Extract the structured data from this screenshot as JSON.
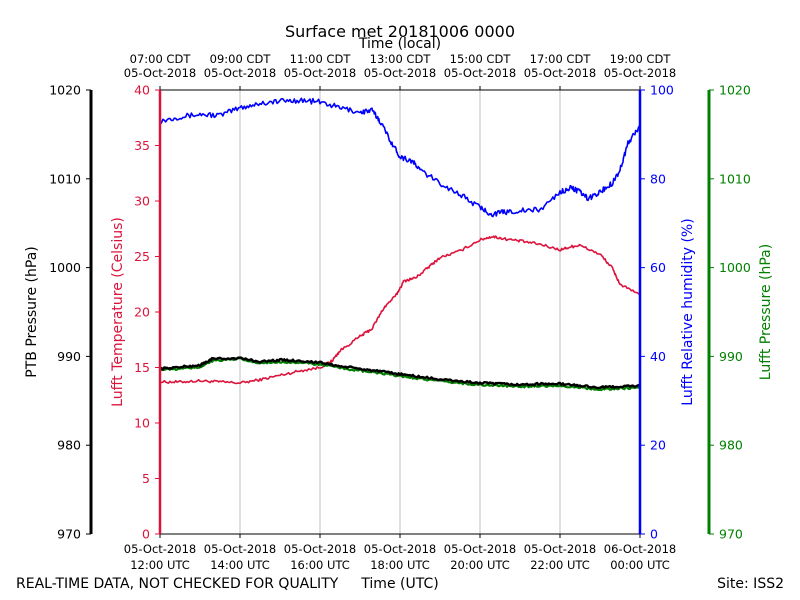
{
  "chart_data": {
    "type": "line",
    "title": "Surface met 20181006 0000",
    "top_axis_label": "Time (local)",
    "xlabel": "Time (UTC)",
    "footer_left": "REAL-TIME DATA, NOT CHECKED FOR QUALITY",
    "footer_right": "Site: ISS2",
    "x_range_hours": [
      12,
      24
    ],
    "x_ticks": [
      {
        "t": 12,
        "utc": [
          "05-Oct-2018",
          "12:00 UTC"
        ],
        "local": [
          "07:00 CDT",
          "05-Oct-2018"
        ]
      },
      {
        "t": 14,
        "utc": [
          "05-Oct-2018",
          "14:00 UTC"
        ],
        "local": [
          "09:00 CDT",
          "05-Oct-2018"
        ]
      },
      {
        "t": 16,
        "utc": [
          "05-Oct-2018",
          "16:00 UTC"
        ],
        "local": [
          "11:00 CDT",
          "05-Oct-2018"
        ]
      },
      {
        "t": 18,
        "utc": [
          "05-Oct-2018",
          "18:00 UTC"
        ],
        "local": [
          "13:00 CDT",
          "05-Oct-2018"
        ]
      },
      {
        "t": 20,
        "utc": [
          "05-Oct-2018",
          "20:00 UTC"
        ],
        "local": [
          "15:00 CDT",
          "05-Oct-2018"
        ]
      },
      {
        "t": 22,
        "utc": [
          "05-Oct-2018",
          "22:00 UTC"
        ],
        "local": [
          "17:00 CDT",
          "05-Oct-2018"
        ]
      },
      {
        "t": 24,
        "utc": [
          "06-Oct-2018",
          "00:00 UTC"
        ],
        "local": [
          "19:00 CDT",
          "05-Oct-2018"
        ]
      }
    ],
    "axes": {
      "ptb_pressure": {
        "label": "PTB Pressure (hPa)",
        "ylim": [
          970,
          1020
        ],
        "ticks": [
          970,
          980,
          990,
          1000,
          1010,
          1020
        ],
        "color": "#000000"
      },
      "temperature": {
        "label": "Lufft Temperature (Celsius)",
        "ylim": [
          0,
          40
        ],
        "ticks": [
          0,
          5,
          10,
          15,
          20,
          25,
          30,
          35,
          40
        ],
        "color": "#dc143c"
      },
      "humidity": {
        "label": "Lufft Relative humidity (%)",
        "ylim": [
          0,
          100
        ],
        "ticks": [
          0,
          20,
          40,
          60,
          80,
          100
        ],
        "color": "#0000ff"
      },
      "lufft_pressure": {
        "label": "Lufft Pressure (hPa)",
        "ylim": [
          970,
          1020
        ],
        "ticks": [
          970,
          980,
          990,
          1000,
          1010,
          1020
        ],
        "color": "#008000"
      }
    },
    "series": [
      {
        "name": "Lufft Temperature (Celsius)",
        "axis": "temperature",
        "color": "#dc143c",
        "points": [
          [
            12,
            13.7
          ],
          [
            12.5,
            13.7
          ],
          [
            13,
            13.8
          ],
          [
            13.5,
            13.7
          ],
          [
            14,
            13.6
          ],
          [
            14.5,
            13.9
          ],
          [
            15,
            14.3
          ],
          [
            15.5,
            14.7
          ],
          [
            16,
            15.0
          ],
          [
            16.3,
            15.6
          ],
          [
            16.5,
            16.5
          ],
          [
            17,
            17.8
          ],
          [
            17.3,
            18.5
          ],
          [
            17.6,
            20.4
          ],
          [
            17.9,
            21.5
          ],
          [
            18.1,
            22.8
          ],
          [
            18.4,
            23.1
          ],
          [
            18.7,
            24.0
          ],
          [
            19,
            24.9
          ],
          [
            19.5,
            25.5
          ],
          [
            20,
            26.5
          ],
          [
            20.3,
            26.8
          ],
          [
            20.6,
            26.6
          ],
          [
            21,
            26.4
          ],
          [
            21.5,
            26.1
          ],
          [
            22,
            25.6
          ],
          [
            22.3,
            25.9
          ],
          [
            22.5,
            26.0
          ],
          [
            23,
            25.2
          ],
          [
            23.3,
            24.0
          ],
          [
            23.5,
            22.5
          ],
          [
            24,
            21.5
          ]
        ]
      },
      {
        "name": "Lufft Relative humidity (%)",
        "axis": "humidity",
        "color": "#0000ff",
        "points": [
          [
            12,
            93
          ],
          [
            12.5,
            94
          ],
          [
            13,
            94.5
          ],
          [
            13.5,
            94.3
          ],
          [
            14,
            96
          ],
          [
            14.5,
            97
          ],
          [
            15,
            97.5
          ],
          [
            15.5,
            97.7
          ],
          [
            16,
            97.3
          ],
          [
            16.5,
            96
          ],
          [
            17,
            95
          ],
          [
            17.3,
            95.4
          ],
          [
            17.5,
            93
          ],
          [
            17.8,
            88
          ],
          [
            18,
            85
          ],
          [
            18.3,
            84
          ],
          [
            18.5,
            82
          ],
          [
            19,
            79
          ],
          [
            19.5,
            76.5
          ],
          [
            20,
            73.5
          ],
          [
            20.3,
            72
          ],
          [
            20.6,
            72.5
          ],
          [
            21,
            72.8
          ],
          [
            21.5,
            73
          ],
          [
            22,
            77
          ],
          [
            22.3,
            78
          ],
          [
            22.5,
            77
          ],
          [
            22.7,
            75.5
          ],
          [
            23,
            77
          ],
          [
            23.3,
            79
          ],
          [
            23.5,
            82
          ],
          [
            23.7,
            88
          ],
          [
            24,
            92
          ]
        ]
      },
      {
        "name": "PTB Pressure (hPa)",
        "axis": "ptb_pressure",
        "color": "#000000",
        "points": [
          [
            12,
            988.6
          ],
          [
            12.5,
            988.8
          ],
          [
            13,
            989
          ],
          [
            13.3,
            989.7
          ],
          [
            14,
            989.8
          ],
          [
            14.5,
            989.4
          ],
          [
            15,
            989.6
          ],
          [
            15.5,
            989.5
          ],
          [
            16,
            989.3
          ],
          [
            16.5,
            988.9
          ],
          [
            17,
            988.6
          ],
          [
            17.5,
            988.3
          ],
          [
            18,
            988
          ],
          [
            18.5,
            987.7
          ],
          [
            19,
            987.4
          ],
          [
            19.5,
            987.2
          ],
          [
            20,
            987
          ],
          [
            20.5,
            986.9
          ],
          [
            21,
            986.8
          ],
          [
            21.5,
            986.9
          ],
          [
            22,
            986.9
          ],
          [
            22.5,
            986.7
          ],
          [
            23,
            986.5
          ],
          [
            23.5,
            986.6
          ],
          [
            24,
            986.7
          ]
        ]
      },
      {
        "name": "Lufft Pressure (hPa)",
        "axis": "lufft_pressure",
        "color": "#008000",
        "points": [
          [
            12,
            988.5
          ],
          [
            12.5,
            988.6
          ],
          [
            13,
            988.8
          ],
          [
            13.3,
            989.5
          ],
          [
            14,
            989.7
          ],
          [
            14.5,
            989.2
          ],
          [
            15,
            989.4
          ],
          [
            15.5,
            989.3
          ],
          [
            16,
            989.1
          ],
          [
            16.5,
            988.7
          ],
          [
            17,
            988.4
          ],
          [
            17.5,
            988.1
          ],
          [
            18,
            987.8
          ],
          [
            18.5,
            987.5
          ],
          [
            19,
            987.2
          ],
          [
            19.5,
            987.0
          ],
          [
            20,
            986.8
          ],
          [
            20.5,
            986.7
          ],
          [
            21,
            986.6
          ],
          [
            21.5,
            986.7
          ],
          [
            22,
            986.7
          ],
          [
            22.5,
            986.5
          ],
          [
            23,
            986.3
          ],
          [
            23.5,
            986.4
          ],
          [
            24,
            986.5
          ]
        ]
      }
    ],
    "grid": "vertical"
  }
}
